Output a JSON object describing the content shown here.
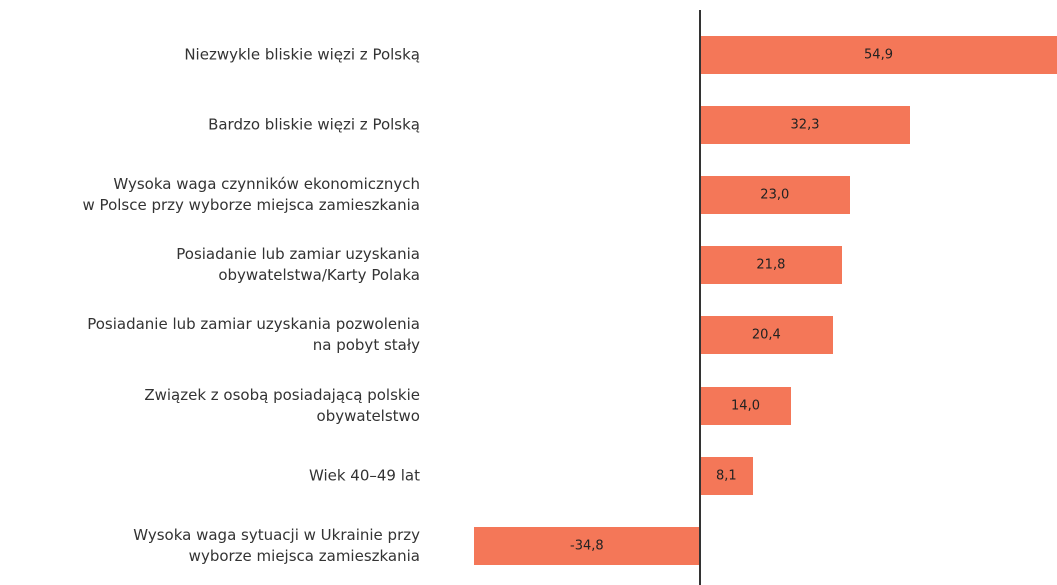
{
  "chart_data": {
    "type": "bar",
    "orientation": "horizontal",
    "categories": [
      "Niezwykle bliskie więzi z Polską",
      "Bardzo bliskie więzi z Polską",
      "Wysoka waga czynników ekonomicznych\nw Polsce przy wyborze miejsca zamieszkania",
      "Posiadanie lub zamiar uzyskania\nobywatelstwa/Karty Polaka",
      "Posiadanie lub zamiar uzyskania pozwolenia\nna pobyt stały",
      "Związek z osobą posiadającą polskie\nobywatelstwo",
      "Wiek 40–49 lat",
      "Wysoka waga sytuacji w Ukrainie przy\nwyborze miejsca zamieszkania"
    ],
    "values": [
      54.9,
      32.3,
      23.0,
      21.8,
      20.4,
      14.0,
      8.1,
      -34.8
    ],
    "value_labels": [
      "54,9",
      "32,3",
      "23,0",
      "21,8",
      "20,4",
      "14,0",
      "8,1",
      "-34,8"
    ],
    "color": "#f47758"
  }
}
